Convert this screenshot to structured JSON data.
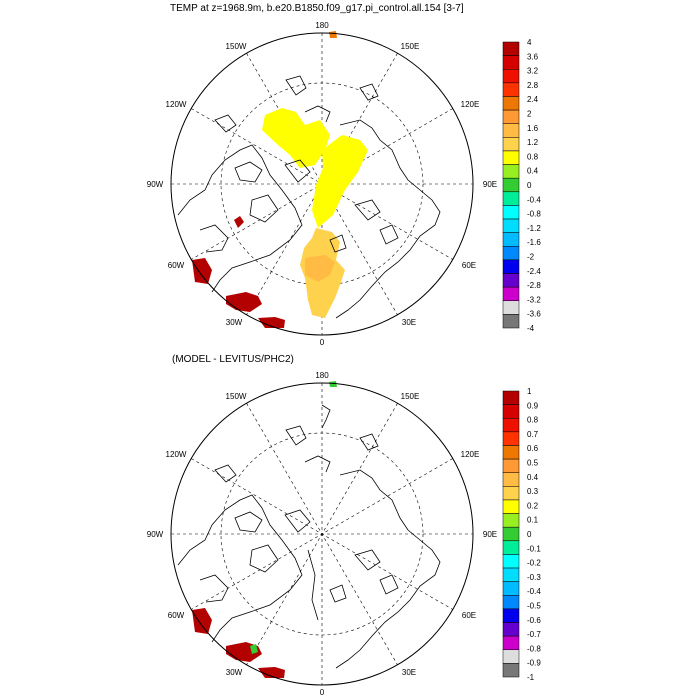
{
  "panels": [
    {
      "title": "TEMP at z=1968.9m, b.e20.B1850.f09_g17.pi_control.all.154 [3-7]",
      "lon_labels": [
        "180",
        "150W",
        "150E",
        "120W",
        "120E",
        "90W",
        "90E",
        "60W",
        "60E",
        "30W",
        "30E",
        "0"
      ],
      "colorbar": {
        "labels": [
          "4",
          "3.6",
          "3.2",
          "2.8",
          "2.4",
          "2",
          "1.6",
          "1.2",
          "0.8",
          "0.4",
          "0",
          "-0.4",
          "-0.8",
          "-1.2",
          "-1.6",
          "-2",
          "-2.4",
          "-2.8",
          "-3.2",
          "-3.6",
          "-4"
        ],
        "colors": [
          "#b30000",
          "#d50000",
          "#ee1100",
          "#ff3300",
          "#ee7700",
          "#ff9933",
          "#ffbb44",
          "#ffd24d",
          "#ffff00",
          "#99ee22",
          "#33cc33",
          "#00ee99",
          "#00ffff",
          "#00ddff",
          "#00bbff",
          "#0088ff",
          "#0000ee",
          "#6600cc",
          "#cc00cc",
          "#dddddd",
          "#777777"
        ]
      }
    },
    {
      "title": "(MODEL - LEVITUS/PHC2)",
      "lon_labels": [
        "180",
        "150W",
        "150E",
        "120W",
        "120E",
        "90W",
        "90E",
        "60W",
        "60E",
        "30W",
        "30E",
        "0"
      ],
      "colorbar": {
        "labels": [
          "1",
          "0.9",
          "0.8",
          "0.7",
          "0.6",
          "0.5",
          "0.4",
          "0.3",
          "0.2",
          "0.1",
          "0",
          "-0.1",
          "-0.2",
          "-0.3",
          "-0.4",
          "-0.5",
          "-0.6",
          "-0.7",
          "-0.8",
          "-0.9",
          "-1"
        ],
        "colors": [
          "#b30000",
          "#d50000",
          "#ee1100",
          "#ff3300",
          "#ee7700",
          "#ff9933",
          "#ffbb44",
          "#ffd24d",
          "#ffff00",
          "#99ee22",
          "#33cc33",
          "#00ee99",
          "#00ffff",
          "#00ddff",
          "#00bbff",
          "#0088ff",
          "#0000ee",
          "#6600cc",
          "#cc00cc",
          "#dddddd",
          "#777777"
        ]
      }
    }
  ]
}
